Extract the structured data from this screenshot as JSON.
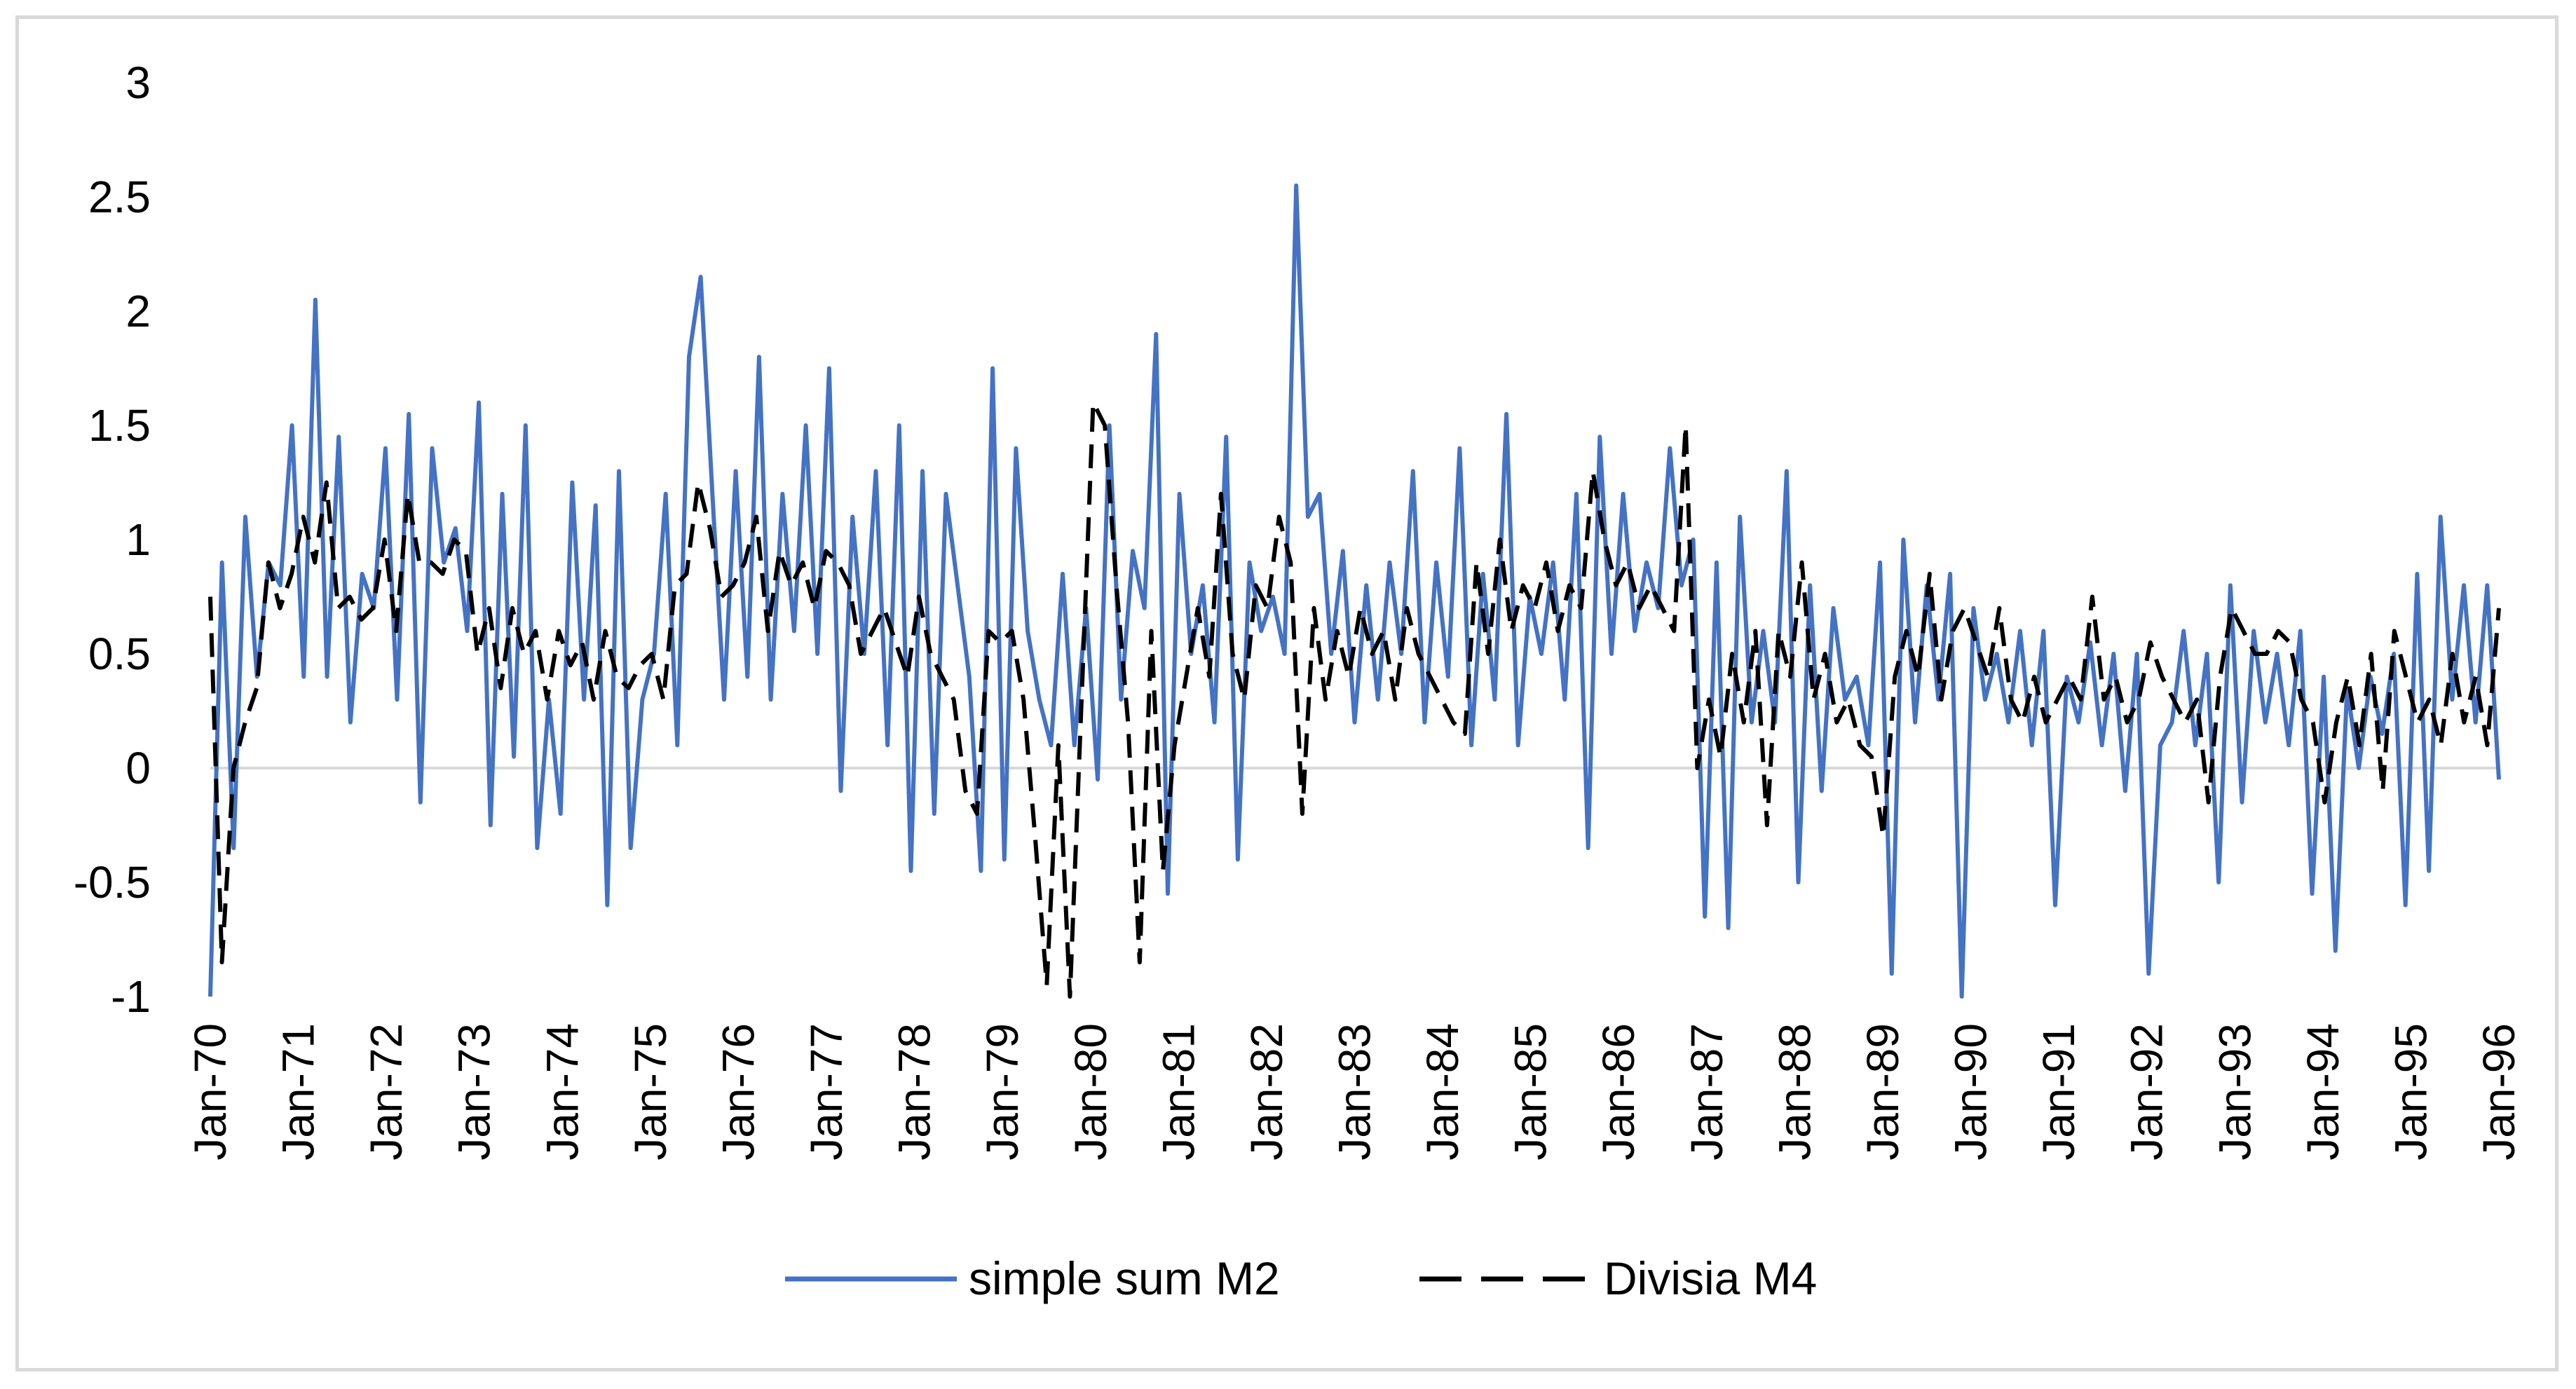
{
  "colors": {
    "series1": "#4472C4",
    "series2": "#000000",
    "zero_line": "#D9D9D9",
    "frame": "#D9D9D9"
  },
  "chart_data": {
    "type": "line",
    "title": "",
    "xlabel": "",
    "ylabel": "",
    "ylim": [
      -1,
      3
    ],
    "yticks": [
      "3",
      "2.5",
      "2",
      "1.5",
      "1",
      "0.5",
      "0",
      "-0.5",
      "-1"
    ],
    "gridlines": false,
    "zero_line": true,
    "legend_position": "bottom",
    "x_start": "Jan-70",
    "x_end": "Jan-96",
    "x_tick_labels": [
      "Jan-70",
      "Jan-71",
      "Jan-72",
      "Jan-73",
      "Jan-74",
      "Jan-75",
      "Jan-76",
      "Jan-77",
      "Jan-78",
      "Jan-79",
      "Jan-80",
      "Jan-81",
      "Jan-82",
      "Jan-83",
      "Jan-84",
      "Jan-85",
      "Jan-86",
      "Jan-87",
      "Jan-88",
      "Jan-89",
      "Jan-90",
      "Jan-91",
      "Jan-92",
      "Jan-93",
      "Jan-94",
      "Jan-95",
      "Jan-96"
    ],
    "series": [
      {
        "name": "simple sum M2",
        "style": "solid",
        "note": "approximate values read every 3 months",
        "values": [
          -1.0,
          0.9,
          -0.35,
          1.1,
          0.4,
          0.9,
          0.8,
          1.5,
          0.4,
          2.05,
          0.4,
          1.45,
          0.2,
          0.85,
          0.7,
          1.4,
          0.3,
          1.55,
          -0.15,
          1.4,
          0.9,
          1.05,
          0.6,
          1.6,
          -0.25,
          1.2,
          0.05,
          1.5,
          -0.35,
          0.3,
          -0.2,
          1.25,
          0.3,
          1.15,
          -0.6,
          1.3,
          -0.35,
          0.3,
          0.5,
          1.2,
          0.1,
          1.8,
          2.15,
          1.2,
          0.3,
          1.3,
          0.4,
          1.8,
          0.3,
          1.2,
          0.6,
          1.5,
          0.5,
          1.75,
          -0.1,
          1.1,
          0.5,
          1.3,
          0.1,
          1.5,
          -0.45,
          1.3,
          -0.2,
          1.2,
          0.8,
          0.4,
          -0.45,
          1.75,
          -0.4,
          1.4,
          0.6,
          0.3,
          0.1,
          0.85,
          0.1,
          0.7,
          -0.05,
          1.5,
          0.3,
          0.95,
          0.7,
          1.9,
          -0.55,
          1.2,
          0.5,
          0.8,
          0.2,
          1.45,
          -0.4,
          0.9,
          0.6,
          0.75,
          0.5,
          2.55,
          1.1,
          1.2,
          0.5,
          0.95,
          0.2,
          0.8,
          0.3,
          0.9,
          0.5,
          1.3,
          0.2,
          0.9,
          0.4,
          1.4,
          0.1,
          0.85,
          0.3,
          1.55,
          0.1,
          0.75,
          0.5,
          0.9,
          0.3,
          1.2,
          -0.35,
          1.45,
          0.5,
          1.2,
          0.6,
          0.9,
          0.7,
          1.4,
          0.8,
          1.0,
          -0.65,
          0.9,
          -0.7,
          1.1,
          0.2,
          0.6,
          0.2,
          1.3,
          -0.5,
          0.8,
          -0.1,
          0.7,
          0.3,
          0.4,
          0.1,
          0.9,
          -0.9,
          1.0,
          0.2,
          0.8,
          0.3,
          0.85,
          -1.0,
          0.7,
          0.3,
          0.5,
          0.2,
          0.6,
          0.1,
          0.6,
          -0.6,
          0.4,
          0.2,
          0.55,
          0.1,
          0.5,
          -0.1,
          0.5,
          -0.9,
          0.1,
          0.2,
          0.6,
          0.1,
          0.5,
          -0.5,
          0.8,
          -0.15,
          0.6,
          0.2,
          0.5,
          0.1,
          0.6,
          -0.55,
          0.4,
          -0.8,
          0.35,
          0.0,
          0.4,
          0.15,
          0.5,
          -0.6,
          0.85,
          -0.45,
          1.1,
          0.3,
          0.8,
          0.2,
          0.8,
          -0.05
        ]
      },
      {
        "name": "Divisia M4",
        "style": "dashed",
        "note": "approximate values read every 3 months",
        "values": [
          0.75,
          -0.85,
          0.0,
          0.2,
          0.35,
          0.9,
          0.7,
          0.85,
          1.1,
          0.9,
          1.25,
          0.7,
          0.75,
          0.65,
          0.7,
          1.0,
          0.6,
          1.2,
          0.9,
          0.9,
          0.85,
          1.0,
          0.95,
          0.5,
          0.7,
          0.35,
          0.7,
          0.5,
          0.6,
          0.3,
          0.6,
          0.45,
          0.55,
          0.3,
          0.6,
          0.4,
          0.35,
          0.45,
          0.5,
          0.3,
          0.8,
          0.85,
          1.25,
          1.05,
          0.75,
          0.8,
          0.9,
          1.1,
          0.6,
          0.95,
          0.8,
          0.9,
          0.7,
          0.95,
          0.9,
          0.8,
          0.5,
          0.6,
          0.7,
          0.55,
          0.4,
          0.75,
          0.5,
          0.4,
          0.3,
          -0.1,
          -0.2,
          0.6,
          0.55,
          0.6,
          0.3,
          -0.3,
          -0.95,
          0.1,
          -1.0,
          0.3,
          1.6,
          1.5,
          0.8,
          0.2,
          -0.85,
          0.6,
          -0.45,
          0.1,
          0.4,
          0.7,
          0.4,
          1.2,
          0.5,
          0.3,
          0.8,
          0.7,
          1.1,
          0.9,
          -0.2,
          0.7,
          0.3,
          0.6,
          0.4,
          0.7,
          0.5,
          0.6,
          0.3,
          0.7,
          0.5,
          0.4,
          0.3,
          0.2,
          0.15,
          0.9,
          0.5,
          1.0,
          0.6,
          0.8,
          0.7,
          0.9,
          0.6,
          0.8,
          0.7,
          1.3,
          1.0,
          0.8,
          0.9,
          0.7,
          0.8,
          0.7,
          0.6,
          1.5,
          0.0,
          0.3,
          0.05,
          0.5,
          0.2,
          0.6,
          -0.25,
          0.6,
          0.4,
          0.9,
          0.3,
          0.5,
          0.2,
          0.3,
          0.1,
          0.05,
          -0.3,
          0.4,
          0.6,
          0.4,
          0.85,
          0.3,
          0.6,
          0.7,
          0.55,
          0.4,
          0.7,
          0.3,
          0.2,
          0.4,
          0.2,
          0.3,
          0.4,
          0.3,
          0.75,
          0.3,
          0.4,
          0.2,
          0.3,
          0.55,
          0.4,
          0.3,
          0.2,
          0.3,
          -0.15,
          0.4,
          0.7,
          0.6,
          0.5,
          0.5,
          0.6,
          0.55,
          0.3,
          0.2,
          -0.15,
          0.2,
          0.4,
          0.1,
          0.5,
          -0.1,
          0.6,
          0.4,
          0.2,
          0.3,
          0.1,
          0.5,
          0.2,
          0.4,
          0.1,
          0.7
        ]
      }
    ]
  },
  "legend": {
    "series1_label": "simple sum M2",
    "series2_label": "Divisia M4"
  }
}
